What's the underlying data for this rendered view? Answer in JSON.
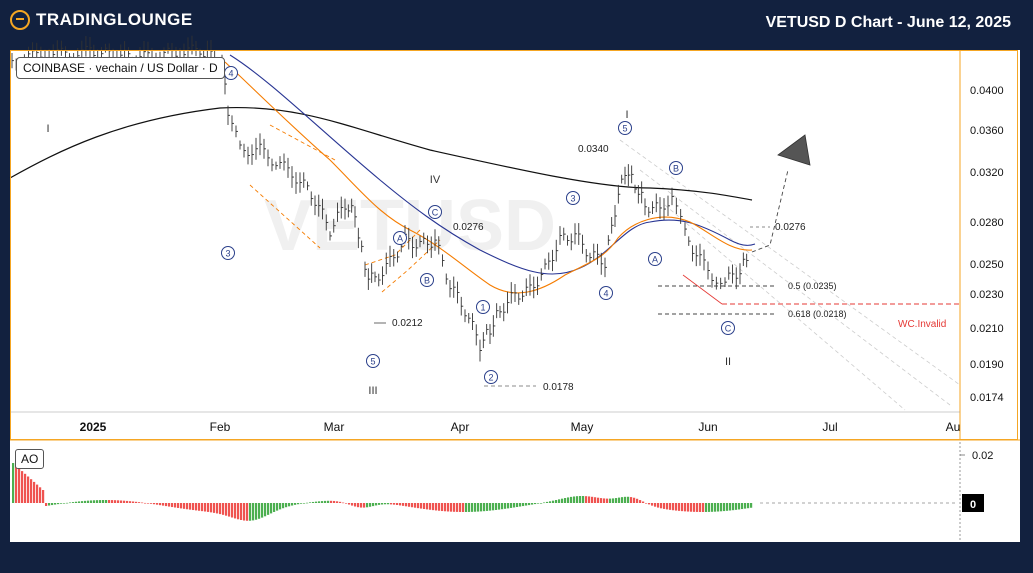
{
  "header": {
    "brand": "TradingLounge",
    "title": "VETUSD D Chart - June 12, 2025"
  },
  "symbol_label": "COINBASE · vechain / US Dollar · D",
  "watermark": "VETUSD",
  "indicator_label": "AO",
  "colors": {
    "bg": "#12213f",
    "accent": "#f5a623",
    "up": "#26a69a",
    "down": "#ef5350",
    "ao_up": "#4caf50",
    "ao_down": "#ef5350",
    "invalid": "#e53935",
    "ema_fast": "#f57c00",
    "ema_slow": "#283593",
    "ma_long": "#111111"
  },
  "chart_data": {
    "type": "line",
    "price_axis": {
      "ticks": [
        "0.0400",
        "0.0360",
        "0.0320",
        "0.0280",
        "0.0250",
        "0.0230",
        "0.0210",
        "0.0190",
        "0.0174"
      ]
    },
    "time_axis": {
      "ticks": [
        "2025",
        "Feb",
        "Mar",
        "Apr",
        "May",
        "Jun",
        "Jul",
        "Au"
      ]
    },
    "price_levels": [
      "0.0340",
      "0.0276",
      "0.0212",
      "0.0178",
      "0.0276"
    ],
    "fib_levels": [
      "0.5 (0.0235)",
      "0.618 (0.0218)"
    ],
    "invalidation": "WC.Invalid",
    "wave_labels": [
      "I",
      "II",
      "III",
      "IV",
      "1",
      "2",
      "3",
      "4",
      "5",
      "A",
      "B",
      "C"
    ],
    "ao_axis": {
      "ticks": [
        "0.02",
        "0"
      ]
    }
  }
}
